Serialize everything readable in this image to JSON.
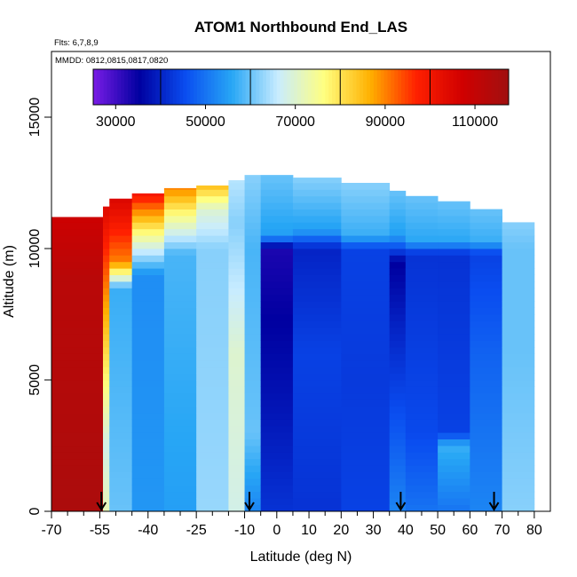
{
  "chart_data": {
    "type": "heatmap",
    "title": "ATOM1 Northbound End_LAS",
    "flights_label": "Flts: 6,7,8,9",
    "dates_label": "MMDD: 0812,0815,0817,0820",
    "xlabel": "Latitude (deg N)",
    "ylabel": "Altitude (m)",
    "xlim": [
      -70,
      85
    ],
    "ylim": [
      0,
      17500
    ],
    "x_ticks": [
      -70,
      -55,
      -40,
      -25,
      -10,
      0,
      10,
      20,
      30,
      40,
      50,
      60,
      70,
      80
    ],
    "x_tick_labels": [
      "-70",
      "-55",
      "-40",
      "-25",
      "-10",
      "0",
      "10",
      "20",
      "30",
      "40",
      "50",
      "60",
      "70",
      "80"
    ],
    "x_minor_ticks": [
      -65,
      -60,
      -50,
      -45,
      -35,
      -30,
      -20,
      -15,
      -5,
      5,
      15,
      25,
      35,
      45,
      55,
      65,
      75
    ],
    "y_ticks": [
      0,
      5000,
      10000,
      15000
    ],
    "y_tick_labels": [
      "0",
      "5000",
      "10000",
      "15000"
    ],
    "colorbar": {
      "range": [
        25000,
        117500
      ],
      "ticks": [
        30000,
        50000,
        70000,
        90000,
        110000
      ],
      "tick_labels": [
        "30000",
        "50000",
        "70000",
        "90000",
        "110000"
      ],
      "boundaries": [
        40000,
        60000,
        80000,
        100000
      ],
      "colors": [
        "#7a1ce6",
        "#0000a0",
        "#0a4df0",
        "#27a6f5",
        "#c8ecff",
        "#ffff80",
        "#ffb000",
        "#ff2000",
        "#d00000",
        "#a01010"
      ]
    },
    "flight_segment_arrows_lat": [
      -54.5,
      -8.5,
      38.5,
      67.5
    ],
    "curtain_columns": [
      {
        "lat_start": -70,
        "lat_end": -54,
        "alt_top": 11200,
        "profile": [
          [
            0,
            115000
          ],
          [
            9000,
            112000
          ],
          [
            11200,
            108000
          ]
        ]
      },
      {
        "lat_start": -54,
        "lat_end": -52,
        "alt_top": 11600,
        "profile": [
          [
            0,
            72000
          ],
          [
            2500,
            68000
          ],
          [
            8000,
            88000
          ],
          [
            11600,
            104000
          ]
        ]
      },
      {
        "lat_start": -52,
        "lat_end": -45,
        "alt_top": 11900,
        "profile": [
          [
            0,
            60000
          ],
          [
            8500,
            57000
          ],
          [
            9500,
            90000
          ],
          [
            11900,
            105000
          ]
        ]
      },
      {
        "lat_start": -45,
        "lat_end": -35,
        "alt_top": 12100,
        "profile": [
          [
            0,
            54000
          ],
          [
            9000,
            53000
          ],
          [
            10300,
            72000
          ],
          [
            12100,
            100000
          ]
        ]
      },
      {
        "lat_start": -35,
        "lat_end": -25,
        "alt_top": 12300,
        "profile": [
          [
            0,
            55000
          ],
          [
            9800,
            58000
          ],
          [
            11200,
            75000
          ],
          [
            12300,
            90000
          ]
        ]
      },
      {
        "lat_start": -25,
        "lat_end": -15,
        "alt_top": 12400,
        "profile": [
          [
            0,
            63000
          ],
          [
            10000,
            62000
          ],
          [
            11500,
            70000
          ],
          [
            12400,
            85000
          ]
        ]
      },
      {
        "lat_start": -15,
        "lat_end": -10,
        "alt_top": 12600,
        "profile": [
          [
            0,
            68000
          ],
          [
            6000,
            70000
          ],
          [
            11000,
            62000
          ],
          [
            12600,
            65000
          ]
        ]
      },
      {
        "lat_start": -10,
        "lat_end": -5,
        "alt_top": 12800,
        "profile": [
          [
            0,
            52000
          ],
          [
            3000,
            60000
          ],
          [
            10000,
            58000
          ],
          [
            12800,
            62000
          ]
        ]
      },
      {
        "lat_start": -5,
        "lat_end": 5,
        "alt_top": 12800,
        "profile": [
          [
            0,
            42000
          ],
          [
            4000,
            38000
          ],
          [
            10000,
            33000
          ],
          [
            10500,
            55000
          ],
          [
            12800,
            60000
          ]
        ]
      },
      {
        "lat_start": 5,
        "lat_end": 20,
        "alt_top": 12700,
        "profile": [
          [
            0,
            42000
          ],
          [
            6000,
            44000
          ],
          [
            10000,
            40000
          ],
          [
            10700,
            55000
          ],
          [
            12700,
            62000
          ]
        ]
      },
      {
        "lat_start": 20,
        "lat_end": 35,
        "alt_top": 12500,
        "profile": [
          [
            0,
            44000
          ],
          [
            5000,
            43000
          ],
          [
            10000,
            44000
          ],
          [
            10500,
            57000
          ],
          [
            12500,
            62000
          ]
        ]
      },
      {
        "lat_start": 35,
        "lat_end": 40,
        "alt_top": 12200,
        "profile": [
          [
            0,
            52000
          ],
          [
            7000,
            40000
          ],
          [
            9500,
            35000
          ],
          [
            10500,
            55000
          ],
          [
            12200,
            60000
          ]
        ]
      },
      {
        "lat_start": 40,
        "lat_end": 50,
        "alt_top": 12000,
        "profile": [
          [
            0,
            50000
          ],
          [
            3000,
            45000
          ],
          [
            9800,
            42000
          ],
          [
            10300,
            56000
          ],
          [
            12000,
            60000
          ]
        ]
      },
      {
        "lat_start": 50,
        "lat_end": 60,
        "alt_top": 11800,
        "profile": [
          [
            0,
            50000
          ],
          [
            2500,
            57000
          ],
          [
            3000,
            44000
          ],
          [
            9800,
            42000
          ],
          [
            10300,
            56000
          ],
          [
            11800,
            60000
          ]
        ]
      },
      {
        "lat_start": 60,
        "lat_end": 70,
        "alt_top": 11500,
        "profile": [
          [
            0,
            52000
          ],
          [
            6000,
            48000
          ],
          [
            9800,
            44000
          ],
          [
            10300,
            57000
          ],
          [
            11500,
            60000
          ]
        ]
      },
      {
        "lat_start": 70,
        "lat_end": 80,
        "alt_top": 11000,
        "profile": [
          [
            0,
            62000
          ],
          [
            6000,
            60000
          ],
          [
            10000,
            60000
          ],
          [
            11000,
            62000
          ]
        ]
      }
    ]
  }
}
